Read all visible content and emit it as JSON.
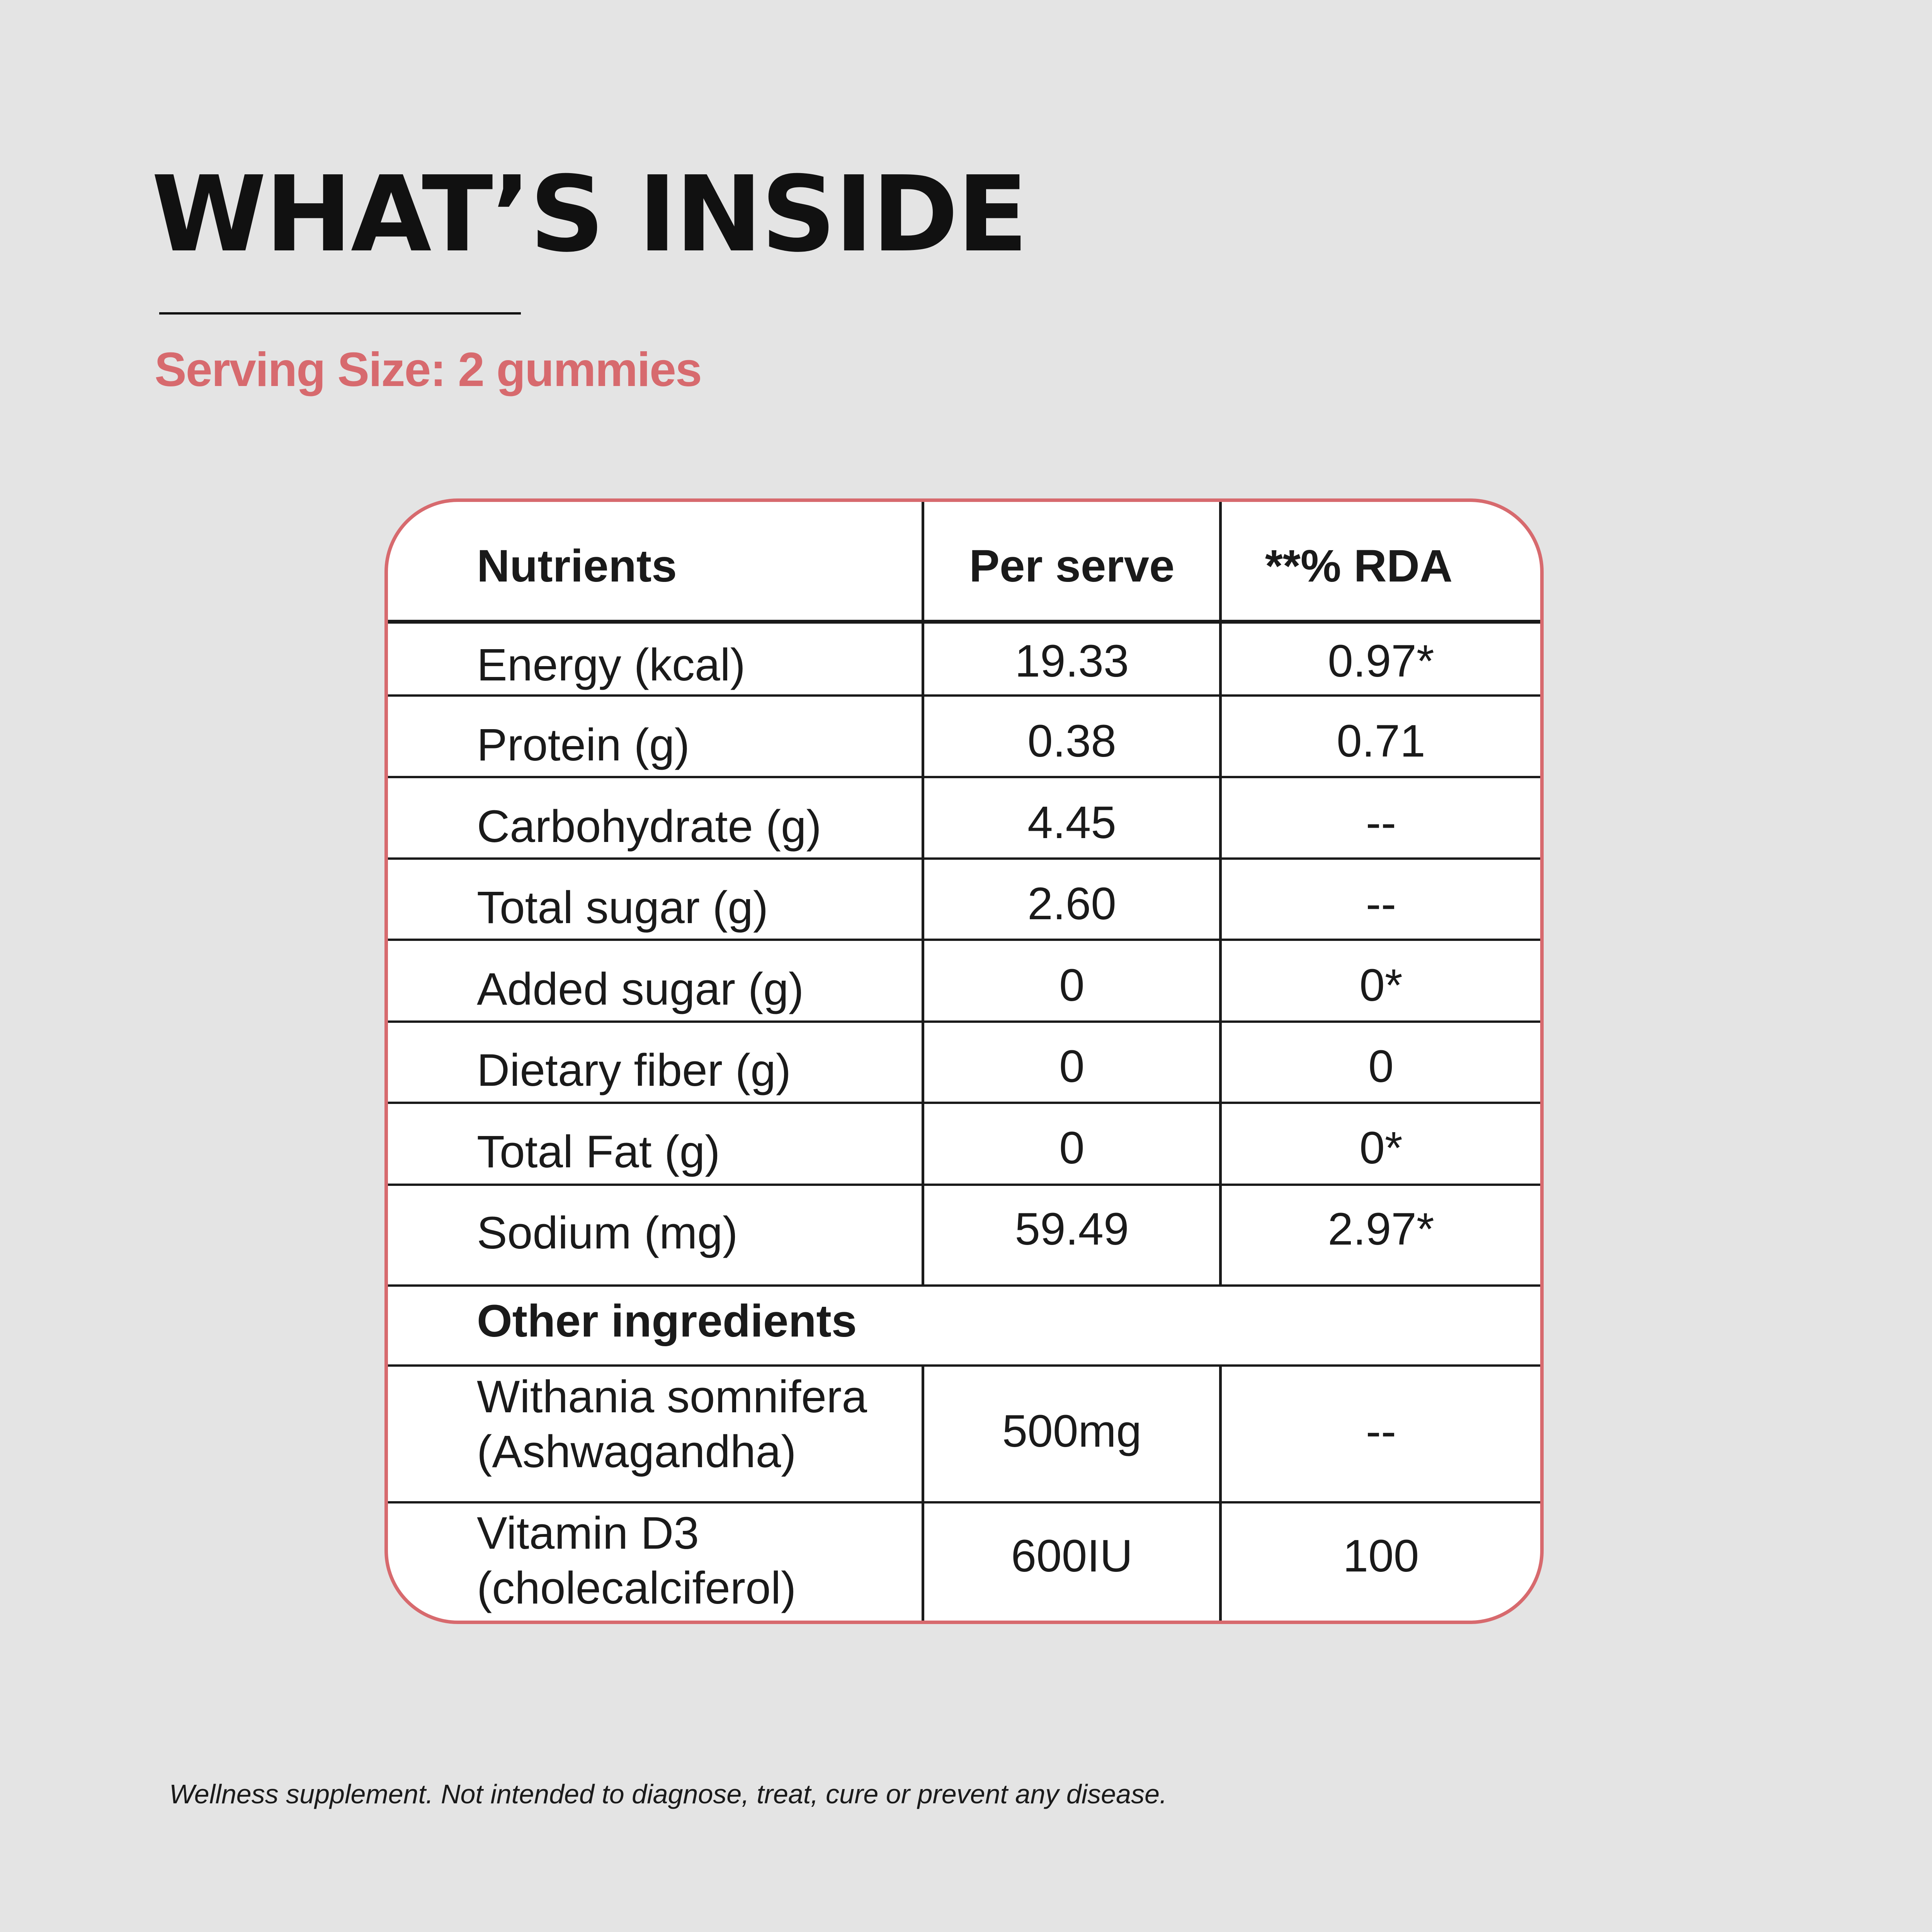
{
  "title": "WHAT’S INSIDE",
  "serving_size": "Serving Size: 2 gummies",
  "table": {
    "headers": {
      "nutrients": "Nutrients",
      "per_serve": "Per serve",
      "rda": "**% RDA"
    },
    "nutrient_rows": [
      {
        "name": "Energy (kcal)",
        "per_serve": "19.33",
        "rda": "0.97*"
      },
      {
        "name": "Protein (g)",
        "per_serve": "0.38",
        "rda": "0.71"
      },
      {
        "name": "Carbohydrate (g)",
        "per_serve": "4.45",
        "rda": "--"
      },
      {
        "name": "Total sugar (g)",
        "per_serve": "2.60",
        "rda": "--"
      },
      {
        "name": "Added sugar (g)",
        "per_serve": "0",
        "rda": "0*"
      },
      {
        "name": "Dietary fiber (g)",
        "per_serve": "0",
        "rda": "0"
      },
      {
        "name": "Total Fat (g)",
        "per_serve": "0",
        "rda": "0*"
      },
      {
        "name": "Sodium (mg)",
        "per_serve": "59.49",
        "rda": "2.97*"
      }
    ],
    "other_ingredients_label": "Other ingredients",
    "ingredient_rows": [
      {
        "name_line1": "Withania somnifera",
        "name_line2": "(Ashwagandha)",
        "per_serve": "500mg",
        "rda": "--"
      },
      {
        "name_line1": "Vitamin D3",
        "name_line2": "(cholecalciferol)",
        "per_serve": "600IU",
        "rda": "100"
      }
    ]
  },
  "disclaimer": "Wellness supplement. Not intended to diagnose, treat, cure or prevent any disease.",
  "colors": {
    "background": "#e4e4e4",
    "accent": "#d76a6e",
    "text": "#1a1a1a",
    "table_fill": "#ffffff"
  }
}
